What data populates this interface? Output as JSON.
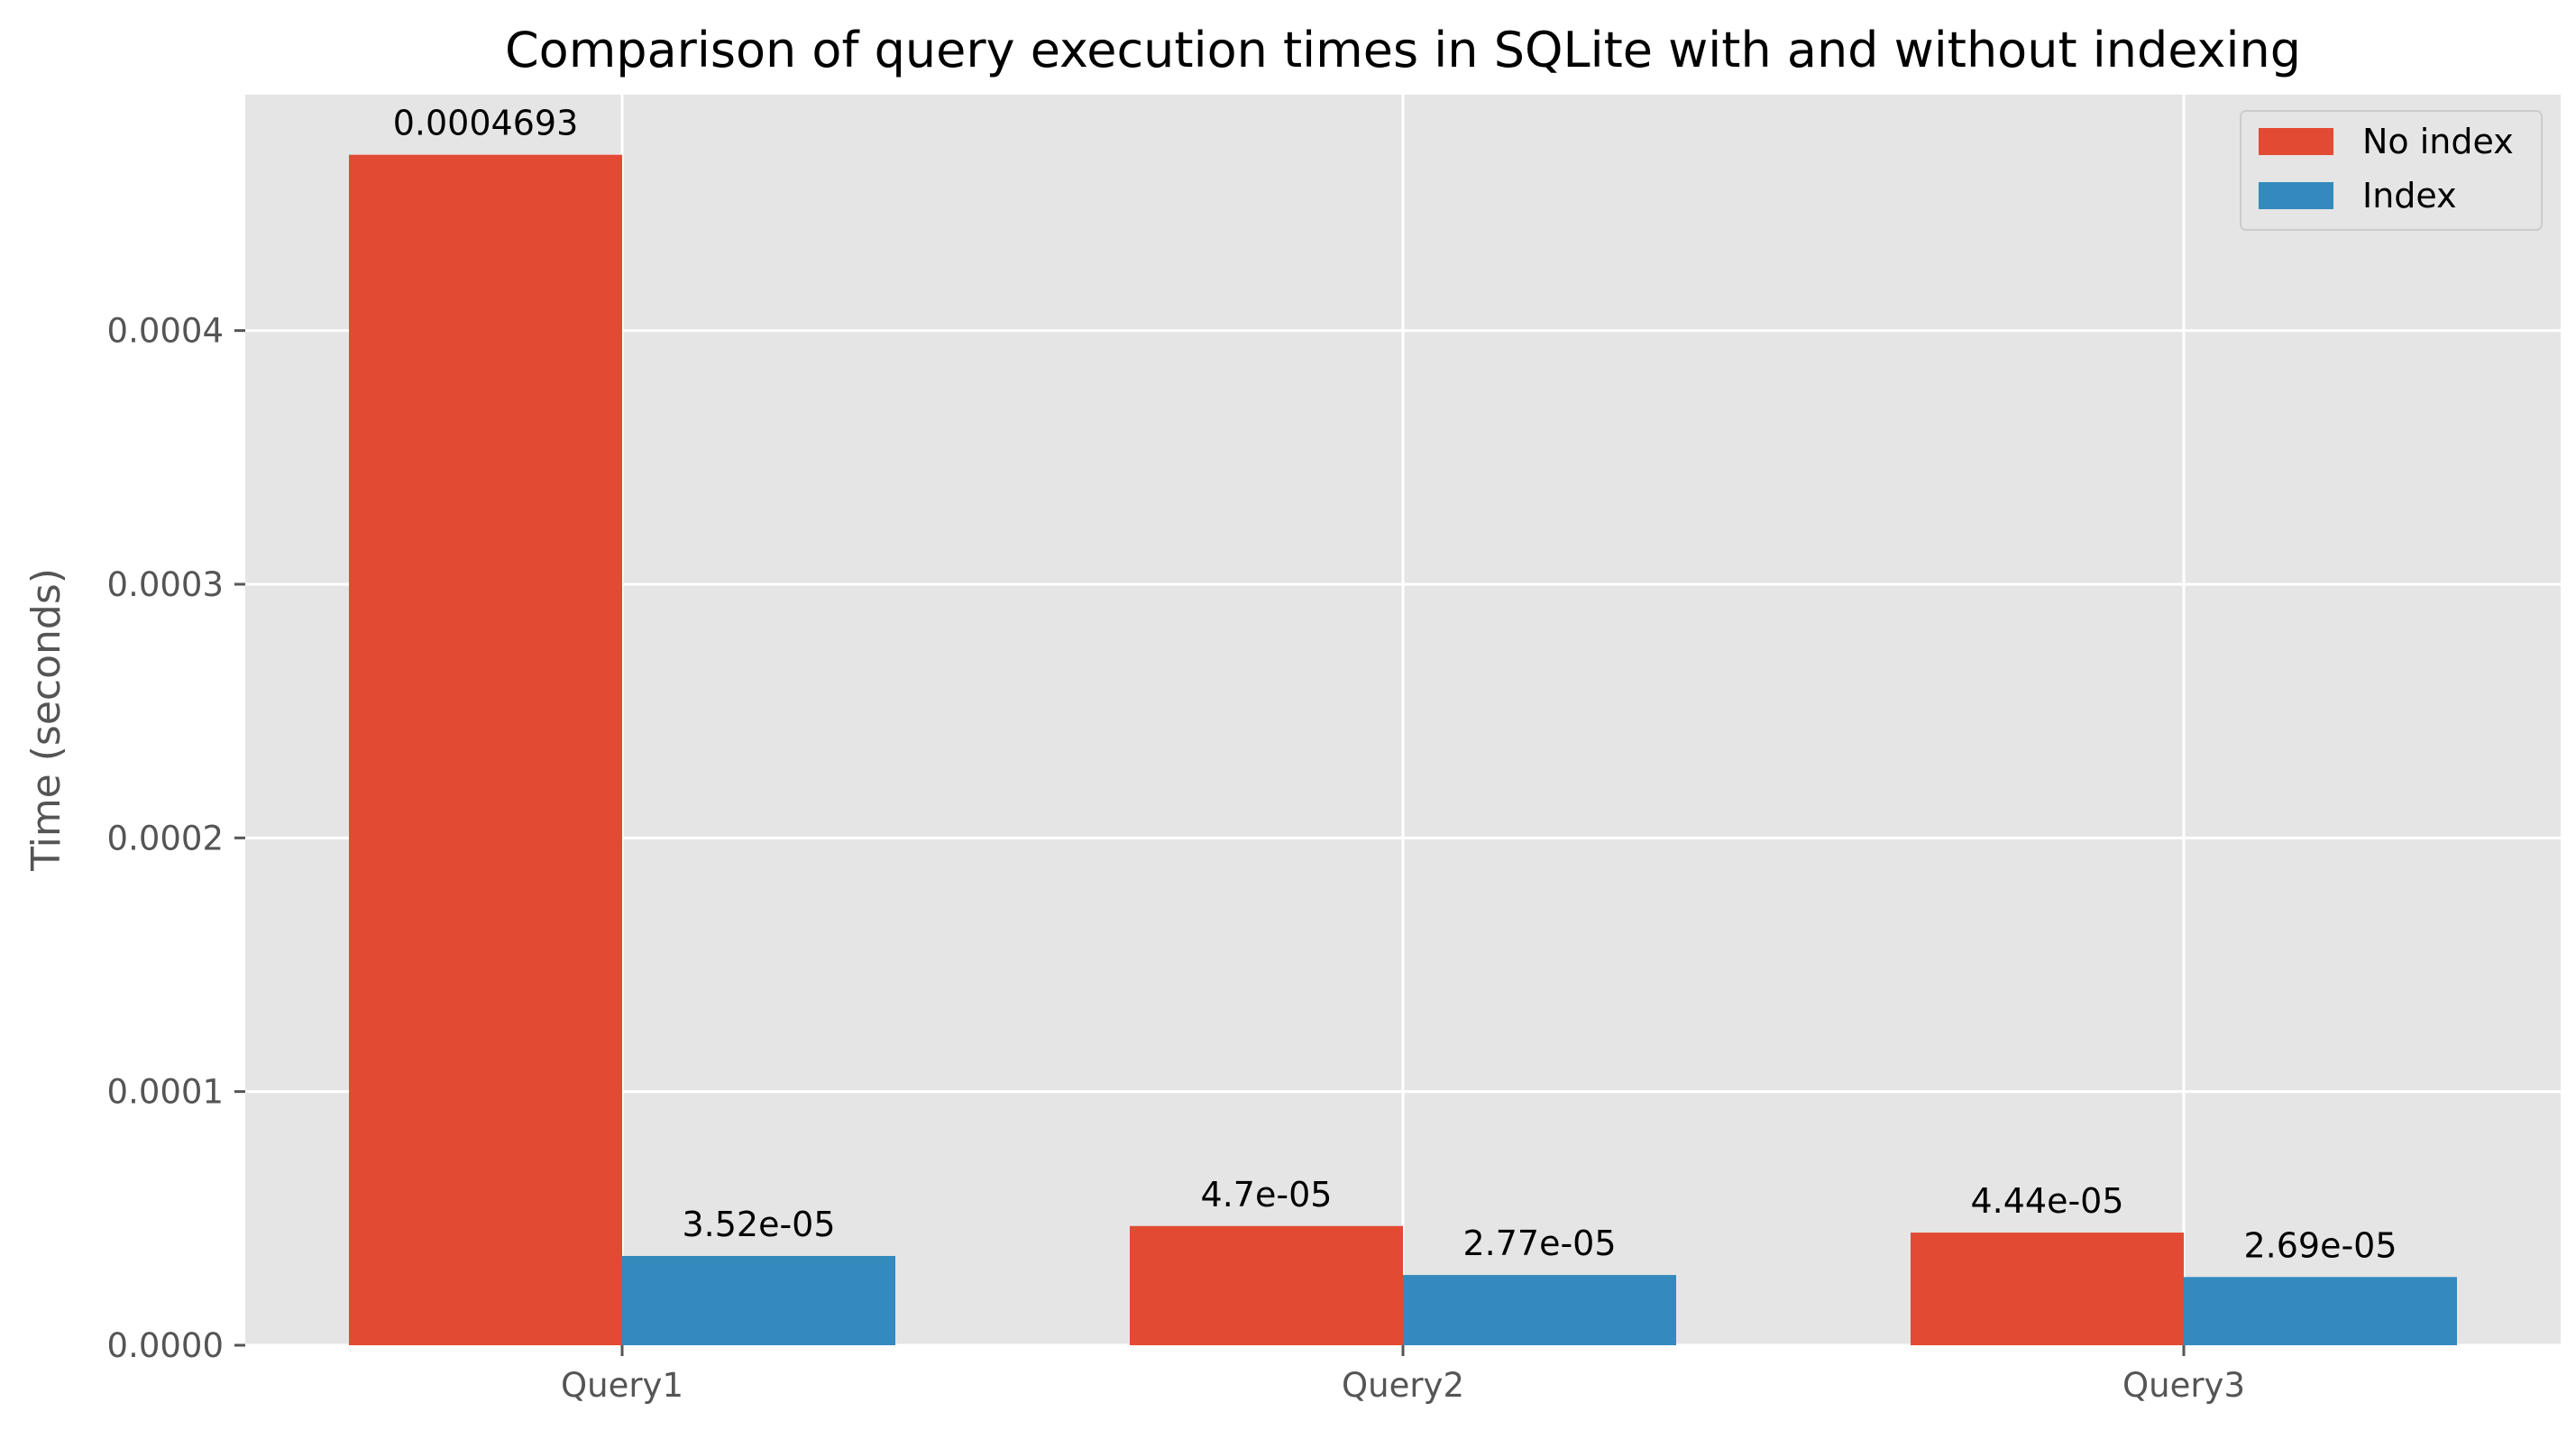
{
  "chart_data": {
    "type": "bar",
    "title": "Comparison of query execution times in SQLite with and without indexing",
    "xlabel": "",
    "ylabel": "Time (seconds)",
    "categories": [
      "Query1",
      "Query2",
      "Query3"
    ],
    "series": [
      {
        "name": "No index",
        "color": "#E24A33",
        "values": [
          0.0004693,
          4.7e-05,
          4.44e-05
        ],
        "labels": [
          "0.0004693",
          "4.7e-05",
          "4.44e-05"
        ]
      },
      {
        "name": "Index",
        "color": "#348ABD",
        "values": [
          3.52e-05,
          2.77e-05,
          2.69e-05
        ],
        "labels": [
          "3.52e-05",
          "2.77e-05",
          "2.69e-05"
        ]
      }
    ],
    "ylim": [
      0,
      0.000493
    ],
    "yticks": [
      0,
      0.0001,
      0.0002,
      0.0003,
      0.0004
    ],
    "ytick_labels": [
      "0.0000",
      "0.0001",
      "0.0002",
      "0.0003",
      "0.0004"
    ],
    "grid": true,
    "legend_position": "top-right",
    "plot_background": "#E5E5E5"
  }
}
